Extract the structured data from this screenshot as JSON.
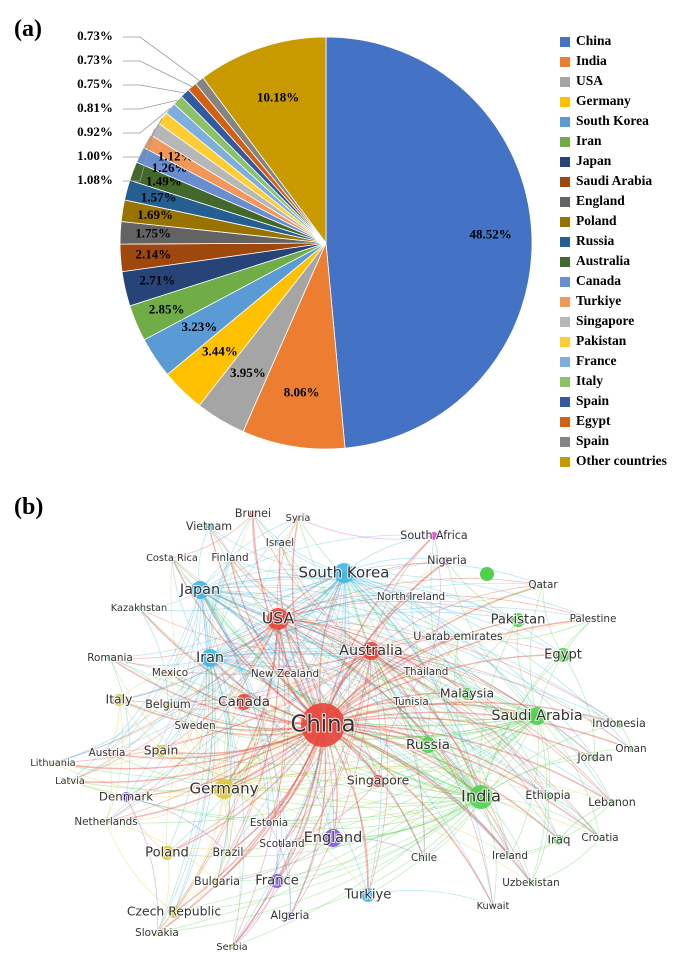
{
  "chart_data": {
    "type": "pie",
    "panel_label": "(a)",
    "categories": [
      "China",
      "India",
      "USA",
      "Germany",
      "South Korea",
      "Iran",
      "Japan",
      "Saudi Arabia",
      "England",
      "Poland",
      "Russia",
      "Australia",
      "Canada",
      "Turkiye",
      "Singapore",
      "Pakistan",
      "France",
      "Italy",
      "Spain",
      "Egypt",
      "Spain",
      "Other countries"
    ],
    "values": [
      48.52,
      8.06,
      3.95,
      3.44,
      3.23,
      2.85,
      2.71,
      2.14,
      1.75,
      1.69,
      1.57,
      1.49,
      1.26,
      1.12,
      1.08,
      1.0,
      0.92,
      0.81,
      0.75,
      0.73,
      0.73,
      10.18
    ],
    "value_labels": [
      "48.52%",
      "8.06%",
      "3.95%",
      "3.44%",
      "3.23%",
      "2.85%",
      "2.71%",
      "2.14%",
      "1.75%",
      "1.69%",
      "1.57%",
      "1.49%",
      "1.26%",
      "1.12%",
      "1.08%",
      "1.00%",
      "0.92%",
      "0.81%",
      "0.75%",
      "0.73%",
      "0.73%",
      "10.18%"
    ],
    "colors": [
      "#4472c4",
      "#ed7d31",
      "#a5a5a5",
      "#ffc000",
      "#5b9bd5",
      "#70ad47",
      "#264478",
      "#9e480e",
      "#636363",
      "#997300",
      "#255e91",
      "#43682b",
      "#698ed0",
      "#f1975a",
      "#b7b7b7",
      "#ffcd33",
      "#7cafdd",
      "#8cc168",
      "#335aa1",
      "#d26012",
      "#848484",
      "#c89a00"
    ],
    "legend": "right"
  },
  "network": {
    "panel_label": "(b)",
    "nodes": [
      "China",
      "India",
      "USA",
      "South Korea",
      "Japan",
      "Iran",
      "Australia",
      "Canada",
      "Germany",
      "England",
      "Russia",
      "Saudi Arabia",
      "Pakistan",
      "Egypt",
      "Malaysia",
      "Singapore",
      "Poland",
      "Italy",
      "Spain",
      "France",
      "Turkiye",
      "Czech Republic",
      "Iraq",
      "Ethiopia",
      "Indonesia",
      "Jordan",
      "Lebanon",
      "Croatia",
      "Oman",
      "Qatar",
      "Palestine",
      "South Africa",
      "Nigeria",
      "North Ireland",
      "U arab emirates",
      "Thailand",
      "Tunisia",
      "Vietnam",
      "Brunei",
      "Syria",
      "Israel",
      "Finland",
      "Costa Rica",
      "Kazakhstan",
      "Romania",
      "Mexico",
      "New Zealand",
      "Belgium",
      "Sweden",
      "Austria",
      "Lithuania",
      "Latvia",
      "Denmark",
      "Netherlands",
      "Estonia",
      "Scotland",
      "Brazil",
      "Bulgaria",
      "Algeria",
      "Serbia",
      "Slovakia",
      "Chile",
      "Ireland",
      "Uzbekistan",
      "Kuwait"
    ]
  }
}
